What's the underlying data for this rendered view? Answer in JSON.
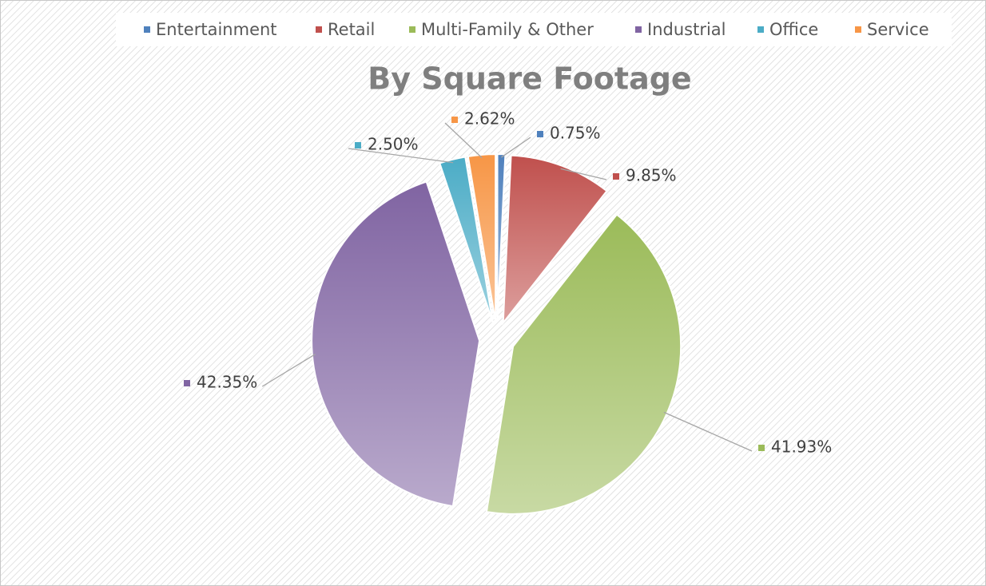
{
  "chart_data": {
    "type": "pie",
    "title": "By Square Footage",
    "categories": [
      "Entertainment",
      "Retail",
      "Multi-Family & Other",
      "Industrial",
      "Office",
      "Service"
    ],
    "values": [
      0.75,
      9.85,
      41.93,
      42.35,
      2.5,
      2.62
    ],
    "value_labels": [
      "0.75%",
      "9.85%",
      "41.93%",
      "42.35%",
      "2.50%",
      "2.62%"
    ],
    "colors": [
      "#4f81bd",
      "#c0504d",
      "#9bbb59",
      "#8064a2",
      "#4bacc6",
      "#f79646"
    ]
  }
}
